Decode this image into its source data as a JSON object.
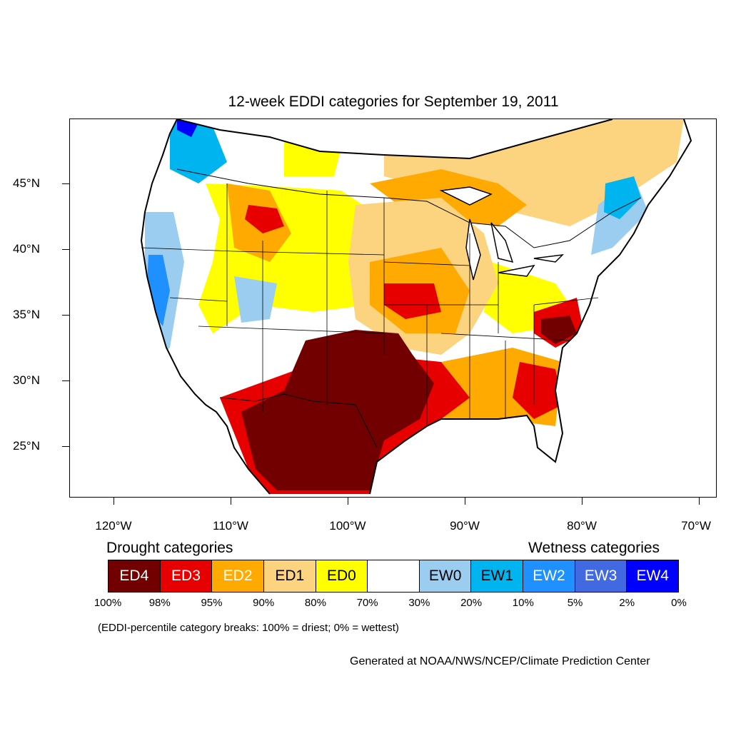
{
  "title": "12-week EDDI categories for September 19, 2011",
  "map": {
    "lat_labels": [
      "45°N",
      "40°N",
      "35°N",
      "30°N",
      "25°N"
    ],
    "lon_labels": [
      "120°W",
      "110°W",
      "100°W",
      "90°W",
      "80°W",
      "70°W"
    ],
    "colors": {
      "ED4": "#730000",
      "ED3": "#e60000",
      "ED2": "#ffaa00",
      "ED1": "#fcd37f",
      "ED0": "#ffff00",
      "neutral": "#ffffff",
      "EW0": "#9bcdf0",
      "EW1": "#00b4f0",
      "EW2": "#1e90ff",
      "EW3": "#4169e1",
      "EW4": "#0000ff"
    }
  },
  "legend": {
    "drought_heading": "Drought categories",
    "wetness_heading": "Wetness categories",
    "categories": [
      {
        "label": "ED4",
        "color": "#730000",
        "text_color": "#ffffff"
      },
      {
        "label": "ED3",
        "color": "#e60000",
        "text_color": "#ffffff"
      },
      {
        "label": "ED2",
        "color": "#ffaa00",
        "text_color": "#ffffff"
      },
      {
        "label": "ED1",
        "color": "#fcd37f",
        "text_color": "#000000"
      },
      {
        "label": "ED0",
        "color": "#ffff00",
        "text_color": "#000000"
      },
      {
        "label": "",
        "color": "#ffffff",
        "text_color": "#000000"
      },
      {
        "label": "EW0",
        "color": "#9bcdf0",
        "text_color": "#000000"
      },
      {
        "label": "EW1",
        "color": "#00b4f0",
        "text_color": "#000000"
      },
      {
        "label": "EW2",
        "color": "#1e90ff",
        "text_color": "#ffffff"
      },
      {
        "label": "EW3",
        "color": "#4169e1",
        "text_color": "#ffffff"
      },
      {
        "label": "EW4",
        "color": "#0000ff",
        "text_color": "#ffffff"
      }
    ],
    "breaks": [
      "100%",
      "98%",
      "95%",
      "90%",
      "80%",
      "70%",
      "30%",
      "20%",
      "10%",
      "5%",
      "2%",
      "0%"
    ]
  },
  "note": "(EDDI-percentile category breaks: 100% = driest; 0% = wettest)",
  "credit": "Generated at NOAA/NWS/NCEP/Climate Prediction Center"
}
